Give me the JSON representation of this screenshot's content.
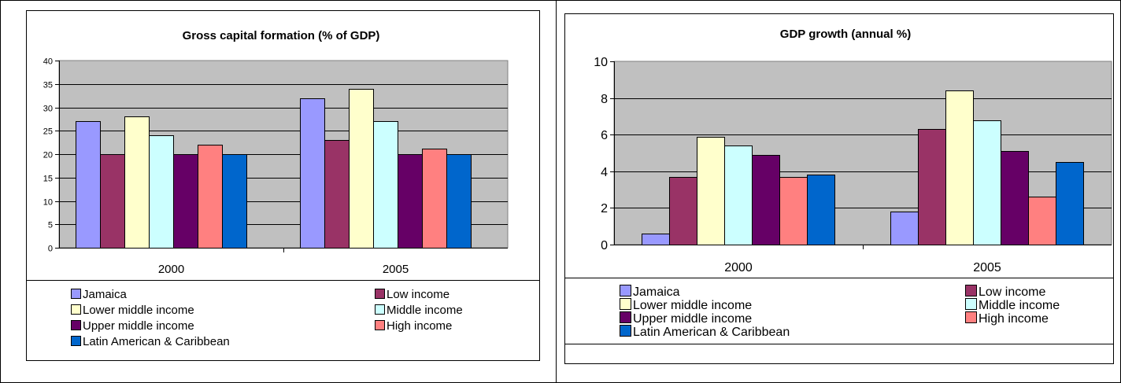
{
  "series_names": [
    "Jamaica",
    "Low income",
    "Lower middle income",
    "Middle income",
    "Upper middle income",
    "High income",
    "Latin American & Caribbean"
  ],
  "series_colors": [
    "#9999FF",
    "#993366",
    "#FFFFCC",
    "#CCFFFF",
    "#660066",
    "#FF8080",
    "#0066CC"
  ],
  "chart_data": [
    {
      "type": "bar",
      "title": "Gross capital formation (% of GDP)",
      "xlabel": "",
      "ylabel": "",
      "categories": [
        "2000",
        "2005"
      ],
      "ylim": [
        0,
        40
      ],
      "yticks": [
        0,
        5,
        10,
        15,
        20,
        25,
        30,
        35,
        40
      ],
      "grid": true,
      "legend_position": "bottom",
      "series": [
        {
          "name": "Jamaica",
          "values": [
            27,
            32
          ]
        },
        {
          "name": "Low income",
          "values": [
            20,
            23
          ]
        },
        {
          "name": "Lower middle income",
          "values": [
            28,
            34
          ]
        },
        {
          "name": "Middle income",
          "values": [
            24,
            27
          ]
        },
        {
          "name": "Upper middle income",
          "values": [
            20,
            20
          ]
        },
        {
          "name": "High income",
          "values": [
            22,
            21.2
          ]
        },
        {
          "name": "Latin American & Caribbean",
          "values": [
            20,
            20
          ]
        }
      ]
    },
    {
      "type": "bar",
      "title": "GDP growth (annual %)",
      "xlabel": "",
      "ylabel": "",
      "categories": [
        "2000",
        "2005"
      ],
      "ylim": [
        0,
        10
      ],
      "yticks": [
        0,
        2,
        4,
        6,
        8,
        10
      ],
      "grid": true,
      "legend_position": "bottom",
      "series": [
        {
          "name": "Jamaica",
          "values": [
            0.6,
            1.8
          ]
        },
        {
          "name": "Low income",
          "values": [
            3.7,
            6.3
          ]
        },
        {
          "name": "Lower middle income",
          "values": [
            5.9,
            8.4
          ]
        },
        {
          "name": "Middle income",
          "values": [
            5.4,
            6.8
          ]
        },
        {
          "name": "Upper middle income",
          "values": [
            4.9,
            5.1
          ]
        },
        {
          "name": "High income",
          "values": [
            3.7,
            2.6
          ]
        },
        {
          "name": "Latin American & Caribbean",
          "values": [
            3.8,
            4.5
          ]
        }
      ]
    }
  ]
}
